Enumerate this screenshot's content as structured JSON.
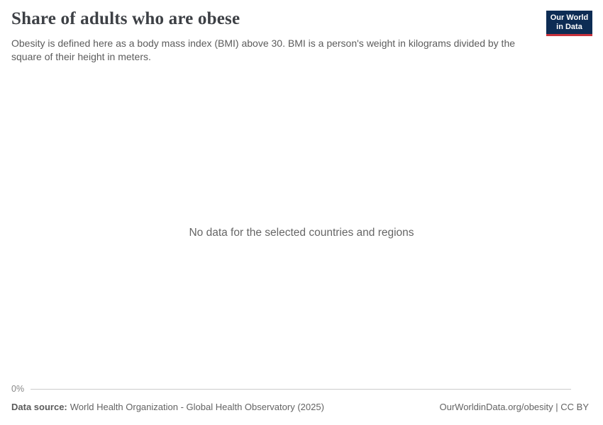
{
  "header": {
    "title": "Share of adults who are obese",
    "subtitle": "Obesity is defined here as a body mass index (BMI) above 30. BMI is a person's weight in kilograms divided by the square of their height in meters."
  },
  "logo": {
    "line1": "Our World",
    "line2": "in Data",
    "bg_color": "#0d2c54",
    "accent_color": "#c8313b"
  },
  "chart": {
    "empty_message": "No data for the selected countries and regions",
    "y_tick_label": "0%",
    "axis_line_color": "#cccccc"
  },
  "footer": {
    "data_source_label": "Data source:",
    "data_source_text": "World Health Organization - Global Health Observatory (2025)",
    "attribution": "OurWorldinData.org/obesity | CC BY"
  },
  "chart_data": {
    "type": "line",
    "title": "Share of adults who are obese",
    "subtitle": "Obesity is defined here as a body mass index (BMI) above 30. BMI is a person's weight in kilograms divided by the square of their height in meters.",
    "categories": [],
    "series": [],
    "yticks": [
      "0%"
    ],
    "ylim": [
      0,
      null
    ],
    "grid": false,
    "legend": "none",
    "empty_state_message": "No data for the selected countries and regions"
  }
}
